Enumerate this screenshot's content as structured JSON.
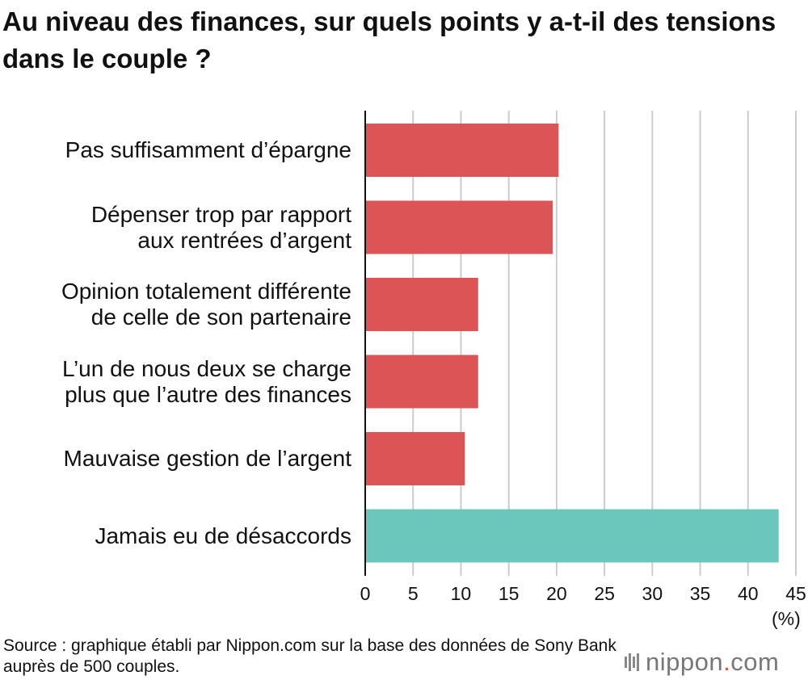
{
  "chart_data": {
    "type": "bar",
    "orientation": "horizontal",
    "title": "Au niveau des finances, sur quels points y a-t-il des tensions dans le couple ?",
    "categories": [
      "Pas suffisamment d’épargne",
      "Dépenser trop par rapport\naux rentrées d’argent",
      "Opinion totalement différente\nde celle de son partenaire",
      "L’un de nous deux se charge\nplus que l’autre des finances",
      "Mauvaise gestion de l’argent",
      "Jamais eu de désaccords"
    ],
    "values": [
      20.2,
      19.6,
      11.8,
      11.8,
      10.4,
      43.2
    ],
    "bar_colors": [
      "#dc5456",
      "#dc5456",
      "#dc5456",
      "#dc5456",
      "#dc5456",
      "#6bc7bb"
    ],
    "xlim": [
      0,
      45
    ],
    "xticks": [
      "0",
      "5",
      "10",
      "15",
      "20",
      "25",
      "30",
      "35",
      "40",
      "45"
    ],
    "unit": "(%)",
    "grid": true
  },
  "source": "Source : graphique établi par Nippon.com sur la base des données de Sony Bank auprès de 500 couples.",
  "logo": {
    "name": "nippon",
    "dot": ".",
    "suffix": "com"
  }
}
